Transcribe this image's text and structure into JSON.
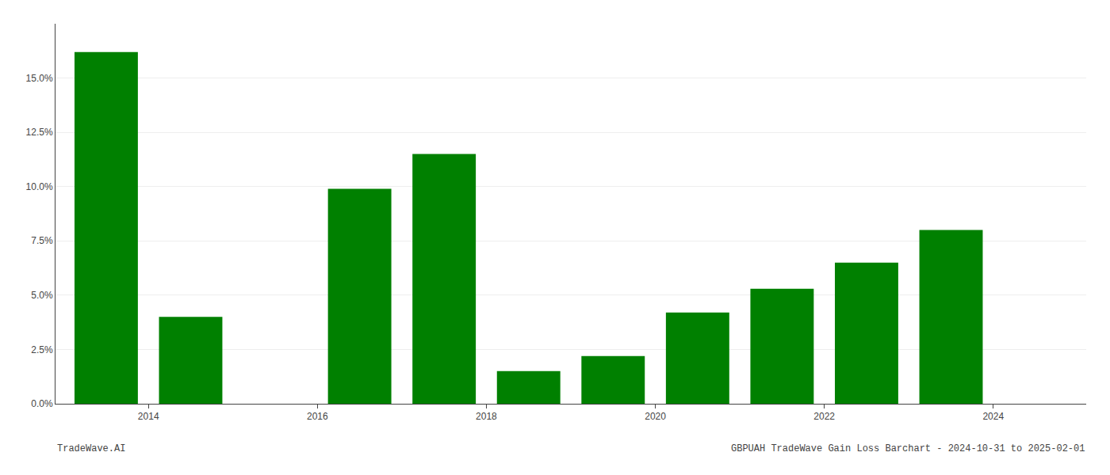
{
  "chart_data": {
    "type": "bar",
    "title": "GBPUAH TradeWave Gain Loss Barchart - 2024-10-31 to 2025-02-01",
    "annotations": [
      "TradeWave.AI"
    ],
    "x": [
      2013,
      2014,
      2015,
      2016,
      2017,
      2018,
      2019,
      2020,
      2021,
      2022,
      2023
    ],
    "values": [
      0.162,
      0.04,
      0.0,
      0.099,
      0.115,
      0.015,
      0.022,
      0.042,
      0.053,
      0.065,
      0.08
    ],
    "color": "#008000",
    "xlim": [
      2012.4,
      2024.6
    ],
    "xticks": [
      {
        "value": 2013.5,
        "label": "2014"
      },
      {
        "value": 2015.5,
        "label": "2016"
      },
      {
        "value": 2017.5,
        "label": "2018"
      },
      {
        "value": 2019.5,
        "label": "2020"
      },
      {
        "value": 2021.5,
        "label": "2022"
      },
      {
        "value": 2023.5,
        "label": "2024"
      }
    ],
    "ylim": [
      0,
      0.175
    ],
    "yticks": [
      {
        "value": 0.0,
        "label": "0.0%"
      },
      {
        "value": 0.025,
        "label": "2.5%"
      },
      {
        "value": 0.05,
        "label": "5.0%"
      },
      {
        "value": 0.075,
        "label": "7.5%"
      },
      {
        "value": 0.1,
        "label": "10.0%"
      },
      {
        "value": 0.125,
        "label": "12.5%"
      },
      {
        "value": 0.15,
        "label": "15.0%"
      }
    ],
    "grid": true
  }
}
